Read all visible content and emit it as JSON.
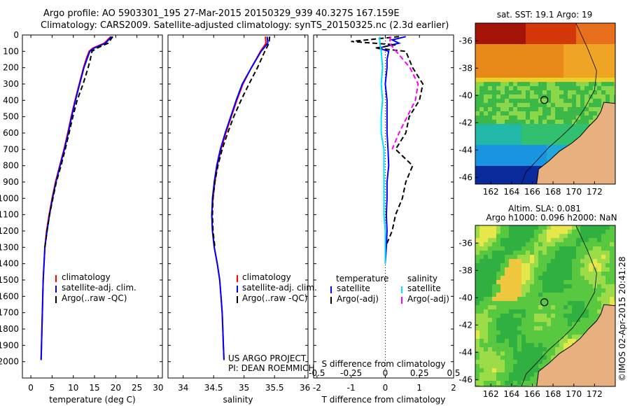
{
  "header": {
    "line1": "Argo profile: AO 5903301_195 27-Mar-2015 20150329_939 40.327S 167.159E",
    "line2": "Climatology: CARS2009. Satellite-adjusted climatology: synTS_20150325.nc (2.3d earlier)"
  },
  "colors": {
    "climatology": "#ff0000",
    "satellite": "#0000ff",
    "argo": "#000000",
    "sal_satellite": "#00e0ff",
    "sal_argo": "#ff00ff",
    "land": "#e8b07e"
  },
  "depth_axis": {
    "ticks": [
      "0",
      "100",
      "200",
      "300",
      "400",
      "500",
      "600",
      "700",
      "800",
      "900",
      "1000",
      "1100",
      "1200",
      "1300",
      "1400",
      "1500",
      "1600",
      "1700",
      "1800",
      "1900",
      "2000"
    ],
    "range": [
      0,
      2100
    ]
  },
  "chart_data": [
    {
      "type": "line",
      "xlabel": "temperature (deg C)",
      "xticks": [
        "0",
        "5",
        "10",
        "15",
        "20",
        "25",
        "30"
      ],
      "xlim": [
        -2,
        31
      ],
      "ylim": [
        0,
        2100
      ],
      "legend": [
        "climatology",
        "satellite-adj. clim.",
        "Argo(..raw -QC)"
      ],
      "series": [
        {
          "name": "climatology",
          "depth": [
            10,
            50,
            80,
            100,
            150,
            200,
            300,
            400,
            500,
            600,
            700,
            800,
            900,
            1000,
            1100,
            1200,
            1300,
            1400,
            1500,
            1600,
            1700,
            1800,
            1900,
            1990
          ],
          "values": [
            18.8,
            17.3,
            14.6,
            13.7,
            13.0,
            12.4,
            11.4,
            10.4,
            9.5,
            8.7,
            7.8,
            6.8,
            5.8,
            5.0,
            4.3,
            3.7,
            3.3,
            3.1,
            2.9,
            2.8,
            2.7,
            2.6,
            2.5,
            2.4
          ]
        },
        {
          "name": "satellite-adj. clim.",
          "depth": [
            10,
            50,
            80,
            100,
            150,
            200,
            300,
            400,
            500,
            600,
            700,
            800,
            900,
            1000,
            1100,
            1200,
            1300,
            1400,
            1500,
            1600,
            1700,
            1800,
            1900,
            1990
          ],
          "values": [
            19.0,
            17.6,
            14.9,
            13.9,
            13.2,
            12.5,
            11.5,
            10.5,
            9.6,
            8.8,
            7.9,
            6.9,
            5.9,
            5.1,
            4.4,
            3.8,
            3.3,
            3.1,
            2.9,
            2.8,
            2.7,
            2.6,
            2.5,
            2.4
          ]
        },
        {
          "name": "Argo(..raw -QC)",
          "depth": [
            10,
            50,
            80,
            100,
            150,
            200,
            300,
            400,
            500,
            600,
            700,
            800,
            900,
            1000,
            1100,
            1200,
            1300
          ],
          "values": [
            19.3,
            18.2,
            15.6,
            14.4,
            14.0,
            13.5,
            12.3,
            10.9,
            9.9,
            9.0,
            8.1,
            7.1,
            6.0,
            5.2,
            4.4,
            3.8,
            3.3
          ]
        }
      ]
    },
    {
      "type": "line",
      "xlabel": "salinity",
      "xticks": [
        "34",
        "34.5",
        "35",
        "35.5",
        "36"
      ],
      "xlim": [
        33.75,
        36.05
      ],
      "ylim": [
        0,
        2100
      ],
      "legend": [
        "climatology",
        "satellite-adj. clim.",
        "Argo(..raw -QC)"
      ],
      "series": [
        {
          "name": "climatology",
          "depth": [
            10,
            50,
            100,
            200,
            300,
            400,
            500,
            600,
            700,
            800,
            900,
            1000,
            1100,
            1200,
            1300,
            1400,
            1500,
            1600,
            1700,
            1800,
            1900,
            1990
          ],
          "values": [
            35.35,
            35.36,
            35.27,
            35.12,
            34.98,
            34.88,
            34.79,
            34.7,
            34.62,
            34.56,
            34.52,
            34.49,
            34.47,
            34.48,
            34.51,
            34.56,
            34.6,
            34.62,
            34.64,
            34.65,
            34.66,
            34.67
          ]
        },
        {
          "name": "satellite-adj. clim.",
          "depth": [
            10,
            50,
            100,
            200,
            300,
            400,
            500,
            600,
            700,
            800,
            900,
            1000,
            1100,
            1200,
            1300,
            1400,
            1500,
            1600,
            1700,
            1800,
            1900,
            1990
          ],
          "values": [
            35.38,
            35.39,
            35.28,
            35.12,
            34.97,
            34.87,
            34.78,
            34.69,
            34.61,
            34.55,
            34.51,
            34.48,
            34.47,
            34.48,
            34.51,
            34.56,
            34.6,
            34.62,
            34.64,
            34.65,
            34.66,
            34.67
          ]
        },
        {
          "name": "Argo(..raw -QC)",
          "depth": [
            10,
            50,
            100,
            200,
            300,
            400,
            500,
            600,
            700,
            800,
            900,
            1000,
            1100,
            1200,
            1300
          ],
          "values": [
            35.42,
            35.41,
            35.34,
            35.22,
            35.08,
            34.95,
            34.83,
            34.73,
            34.64,
            34.57,
            34.52,
            34.49,
            34.48,
            34.49,
            34.52
          ]
        }
      ],
      "annotation": [
        "US ARGO PROJECT",
        "PI: DEAN ROEMMICH"
      ]
    },
    {
      "type": "line",
      "xlabel_bottom": "T difference from climatology",
      "xlabel_top": "S difference from climatology",
      "xticks_bottom": [
        "-2",
        "-1",
        "0",
        "1",
        "2"
      ],
      "xticks_top": [
        "-0.5",
        "-0.25",
        "0",
        "0.25",
        "0.5"
      ],
      "xlim": [
        -2.1,
        2.0
      ],
      "ylim": [
        0,
        2100
      ],
      "legend": {
        "temperature": [
          "satellite",
          "Argo(-adj)"
        ],
        "salinity": [
          "satellite",
          "Argo(-adj)"
        ],
        "headers": [
          "temperature",
          "salinity"
        ]
      },
      "series": [
        {
          "name": "satellite",
          "group": "temperature",
          "depth": [
            10,
            30,
            50,
            80,
            100,
            150,
            200,
            300,
            400,
            500,
            600,
            700,
            800,
            900,
            1000,
            1100,
            1200,
            1300,
            1400
          ],
          "values": [
            0.6,
            0.2,
            0.4,
            -0.2,
            0.1,
            0.05,
            0.05,
            0.0,
            0.05,
            0.05,
            0.05,
            0.08,
            0.1,
            0.05,
            0.05,
            0.03,
            0.05,
            0.03,
            0.0
          ]
        },
        {
          "name": "Argo(-adj)",
          "group": "temperature",
          "depth": [
            10,
            40,
            60,
            80,
            100,
            150,
            200,
            300,
            400,
            500,
            600,
            700,
            800,
            900,
            1000,
            1100,
            1200,
            1300
          ],
          "values": [
            0.4,
            -1.0,
            0.3,
            -0.3,
            0.6,
            0.7,
            0.8,
            1.1,
            1.0,
            0.7,
            0.6,
            0.3,
            0.8,
            0.6,
            0.5,
            0.3,
            0.2,
            0.0
          ]
        },
        {
          "name": "satellite",
          "group": "salinity",
          "depth": [
            10,
            50,
            100,
            200,
            300,
            400,
            500,
            600,
            700,
            800,
            900,
            1000,
            1100,
            1200,
            1300,
            1400
          ],
          "values": [
            -0.04,
            -0.04,
            -0.03,
            -0.02,
            -0.03,
            -0.02,
            -0.03,
            -0.03,
            -0.01,
            -0.01,
            -0.01,
            -0.01,
            -0.01,
            0.0,
            0.0,
            0.0
          ]
        },
        {
          "name": "Argo(-adj)",
          "group": "salinity",
          "depth": [
            10,
            50,
            100,
            200,
            300,
            400,
            500,
            600,
            700
          ],
          "values": [
            0.04,
            0.03,
            0.08,
            0.18,
            0.24,
            0.22,
            0.16,
            0.1,
            0.05
          ]
        }
      ]
    },
    {
      "type": "heatmap",
      "title": "sat. SST: 19.1 Argo: 19",
      "xticks": [
        "162",
        "164",
        "166",
        "168",
        "170",
        "172"
      ],
      "yticks": [
        "-36",
        "-38",
        "-40",
        "-42",
        "-44",
        "-46"
      ],
      "xlim": [
        160.5,
        174
      ],
      "ylim": [
        -46.5,
        -34.7
      ],
      "marker": {
        "lon": 167.16,
        "lat": -40.33
      }
    },
    {
      "type": "heatmap",
      "title": "Altim. SLA: 0.081",
      "subtitle": "Argo h1000: 0.096 h2000: NaN",
      "xticks": [
        "162",
        "164",
        "166",
        "168",
        "170",
        "172"
      ],
      "yticks": [
        "-36",
        "-38",
        "-40",
        "-42",
        "-44",
        "-46"
      ],
      "xlim": [
        160.5,
        174
      ],
      "ylim": [
        -46.5,
        -34.7
      ],
      "marker": {
        "lon": 167.16,
        "lat": -40.33
      }
    }
  ],
  "watermark": "©IMOS 02-Apr-2015 20:41:28"
}
